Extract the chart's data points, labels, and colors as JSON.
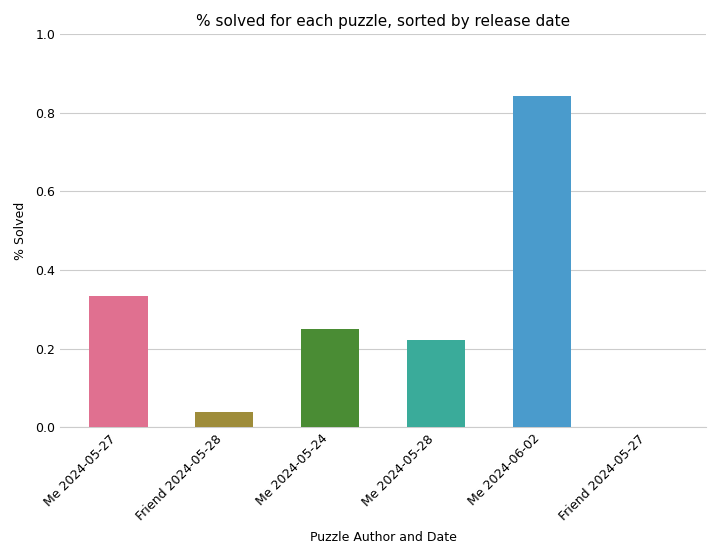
{
  "title": "% solved for each puzzle, sorted by release date",
  "xlabel": "Puzzle Author and Date",
  "ylabel": "% Solved",
  "categories": [
    "Me 2024-05-27",
    "Friend 2024-05-28",
    "Me 2024-05-24",
    "Me 2024-05-28",
    "Me 2024-06-02",
    "Friend 2024-05-27"
  ],
  "values": [
    0.3333,
    0.04,
    0.25,
    0.222,
    0.844,
    0.0
  ],
  "colors": [
    "#e07090",
    "#9e8c3a",
    "#4a8c34",
    "#3aab9a",
    "#4a9bcc",
    "#4a9bcc"
  ],
  "ylim": [
    0.0,
    1.0
  ],
  "yticks": [
    0.0,
    0.2,
    0.4,
    0.6,
    0.8,
    1.0
  ],
  "background_color": "#ffffff",
  "grid_color": "#cccccc",
  "title_fontsize": 11,
  "axis_fontsize": 9,
  "tick_fontsize": 9,
  "bar_width": 0.55
}
